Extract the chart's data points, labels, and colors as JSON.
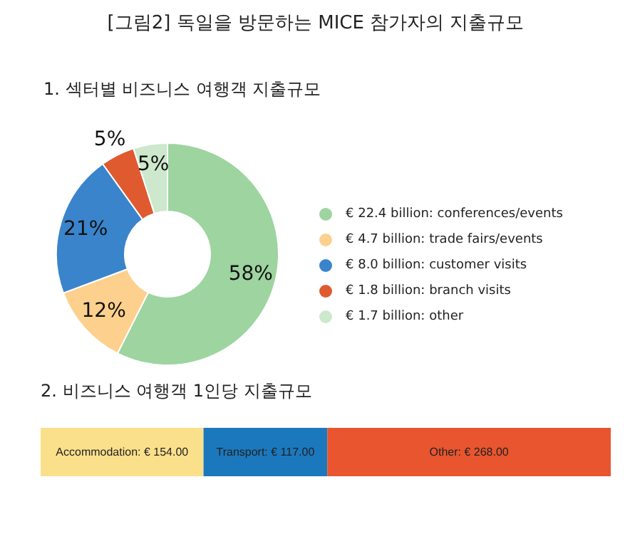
{
  "chart_data": [
    {
      "type": "donut",
      "title": "[그림2] 독일을 방문하는 MICE 참가자의 지출규모",
      "subtitle": "1. 섹터별 비즈니스 여행객 지출규모",
      "categories": [
        "€ 22.4 billion: conferences/events",
        "€ 4.7 billion: trade fairs/events",
        "€ 8.0 billion: customer visits",
        "€ 1.8 billion: branch visits",
        "€ 1.7 billion: other"
      ],
      "values": [
        58,
        12,
        21,
        5,
        5
      ],
      "colors": [
        "#9dd4a0",
        "#fdd08e",
        "#3a84cc",
        "#e05a30",
        "#cde8cc"
      ],
      "value_labels": [
        "58%",
        "12%",
        "21%",
        "5%",
        "5%"
      ],
      "legend": "right"
    },
    {
      "type": "bar",
      "title": "2. 비즈니스 여행객 1인당 지출규모",
      "orientation": "horizontal",
      "stacked": true,
      "categories": [
        null
      ],
      "series": [
        {
          "color": "#fbe08c",
          "values": [
            154
          ],
          "value_labels": [
            "Accommodation: € 154.00"
          ]
        },
        {
          "color": "#1c78bd",
          "values": [
            117
          ],
          "value_labels": [
            "Transport: € 117.00"
          ]
        },
        {
          "color": "#e8552f",
          "values": [
            268
          ],
          "value_labels": [
            "Other: € 268.00"
          ]
        }
      ]
    }
  ]
}
